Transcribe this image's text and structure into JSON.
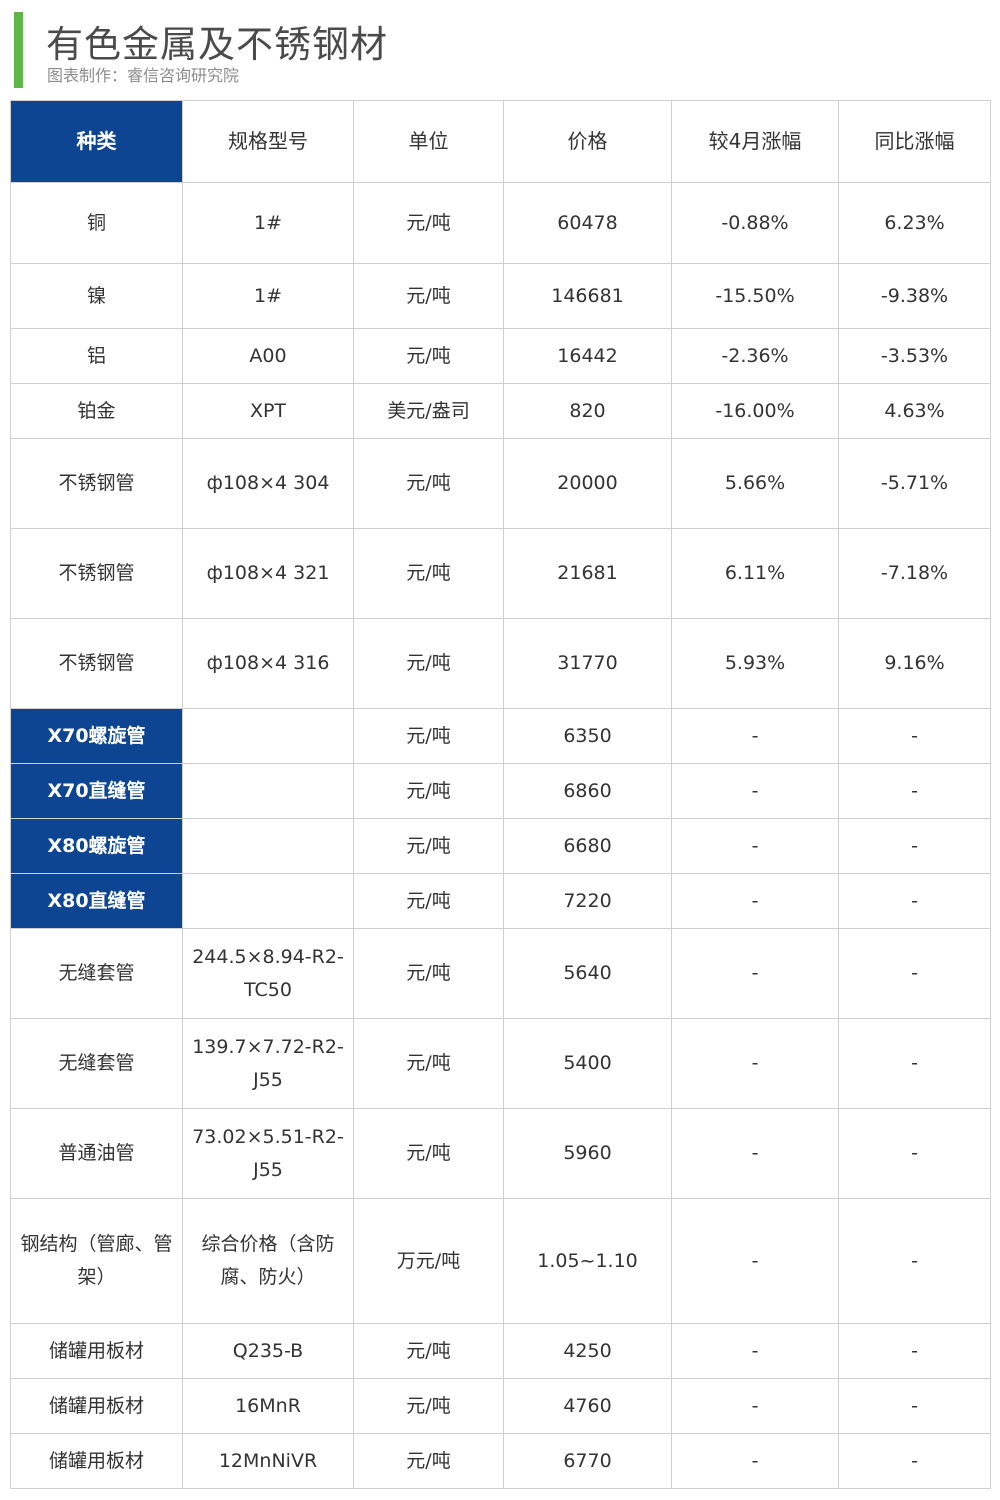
{
  "header": {
    "title": "有色金属及不锈钢材",
    "subtitle": "图表制作：睿信咨询研究院"
  },
  "table": {
    "columns": [
      "种类",
      "规格型号",
      "单位",
      "价格",
      "较4月涨幅",
      "同比涨幅"
    ],
    "rows": [
      {
        "kind": "铜",
        "spec": "1#",
        "unit": "元/吨",
        "price": "60478",
        "mom": "-0.88%",
        "yoy": "6.23%"
      },
      {
        "kind": "镍",
        "spec": "1#",
        "unit": "元/吨",
        "price": "146681",
        "mom": "-15.50%",
        "yoy": "-9.38%"
      },
      {
        "kind": "铝",
        "spec": "A00",
        "unit": "元/吨",
        "price": "16442",
        "mom": "-2.36%",
        "yoy": "-3.53%"
      },
      {
        "kind": "铂金",
        "spec": "XPT",
        "unit": "美元/盎司",
        "price": "820",
        "mom": "-16.00%",
        "yoy": "4.63%"
      },
      {
        "kind": "不锈钢管",
        "spec": "ф108×4  304",
        "unit": "元/吨",
        "price": "20000",
        "mom": "5.66%",
        "yoy": "-5.71%"
      },
      {
        "kind": "不锈钢管",
        "spec": "ф108×4  321",
        "unit": "元/吨",
        "price": "21681",
        "mom": "6.11%",
        "yoy": "-7.18%"
      },
      {
        "kind": "不锈钢管",
        "spec": "ф108×4  316",
        "unit": "元/吨",
        "price": "31770",
        "mom": "5.93%",
        "yoy": "9.16%"
      },
      {
        "kind": "X70螺旋管",
        "spec": "",
        "unit": "元/吨",
        "price": "6350",
        "mom": "-",
        "yoy": "-"
      },
      {
        "kind": "X70直缝管",
        "spec": "",
        "unit": "元/吨",
        "price": "6860",
        "mom": "-",
        "yoy": "-"
      },
      {
        "kind": "X80螺旋管",
        "spec": "",
        "unit": "元/吨",
        "price": "6680",
        "mom": "-",
        "yoy": "-"
      },
      {
        "kind": "X80直缝管",
        "spec": "",
        "unit": "元/吨",
        "price": "7220",
        "mom": "-",
        "yoy": "-"
      },
      {
        "kind": "无缝套管",
        "spec": "244.5×8.94-R2-TC50",
        "unit": "元/吨",
        "price": "5640",
        "mom": "-",
        "yoy": "-"
      },
      {
        "kind": "无缝套管",
        "spec": "139.7×7.72-R2-J55",
        "unit": "元/吨",
        "price": "5400",
        "mom": "-",
        "yoy": "-"
      },
      {
        "kind": "普通油管",
        "spec": "73.02×5.51-R2-J55",
        "unit": "元/吨",
        "price": "5960",
        "mom": "-",
        "yoy": "-"
      },
      {
        "kind": "钢结构（管廊、管架）",
        "spec": "综合价格（含防腐、防火）",
        "unit": "万元/吨",
        "price": "1.05~1.10",
        "mom": "-",
        "yoy": "-"
      },
      {
        "kind": "储罐用板材",
        "spec": "Q235-B",
        "unit": "元/吨",
        "price": "4250",
        "mom": "-",
        "yoy": "-"
      },
      {
        "kind": "储罐用板材",
        "spec": "16MnR",
        "unit": "元/吨",
        "price": "4760",
        "mom": "-",
        "yoy": "-"
      },
      {
        "kind": "储罐用板材",
        "spec": "12MnNiVR",
        "unit": "元/吨",
        "price": "6770",
        "mom": "-",
        "yoy": "-"
      }
    ]
  },
  "colors": {
    "highlight": "#0d4592",
    "accent_bar": "#5fb548",
    "border": "#cfcfcf"
  }
}
